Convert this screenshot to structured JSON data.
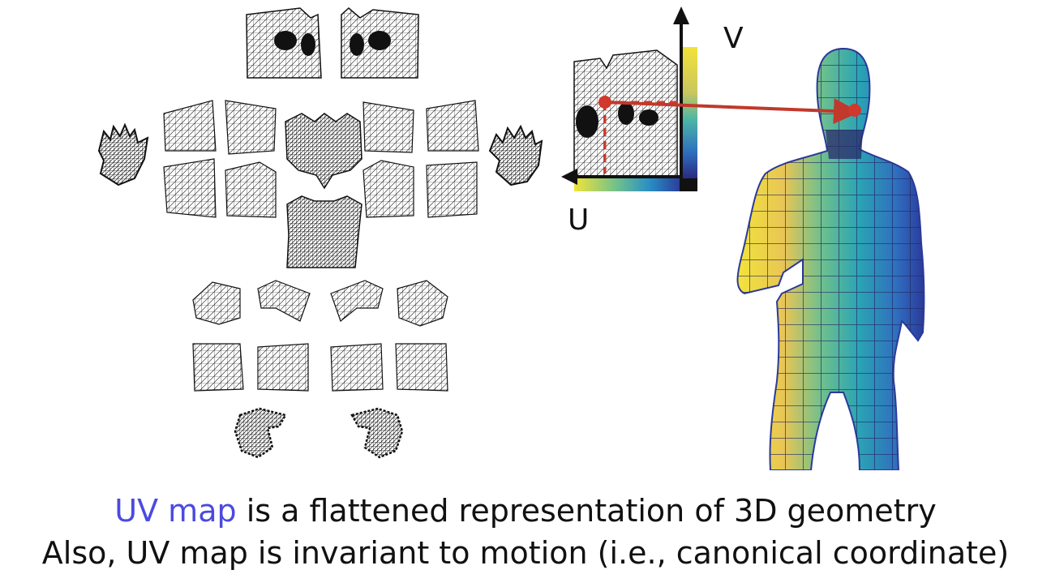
{
  "axes": {
    "v_label": "V",
    "u_label": "U"
  },
  "caption": {
    "line1_highlight": "UV map",
    "line1_rest": " is a flattened representation of 3D geometry",
    "line2": "Also, UV map is invariant to motion (i.e., canonical coordinate)"
  },
  "colors": {
    "highlight": "#4a4ae0",
    "arrow": "#c0392b",
    "mesh": "#111111",
    "colormap": [
      "#f2e33a",
      "#e8c556",
      "#6fc08d",
      "#2aa4b4",
      "#2f6fbf",
      "#2b3a9a"
    ]
  },
  "icons": {
    "body": "human-body-mesh",
    "parts": "uv-atlas-patches"
  }
}
